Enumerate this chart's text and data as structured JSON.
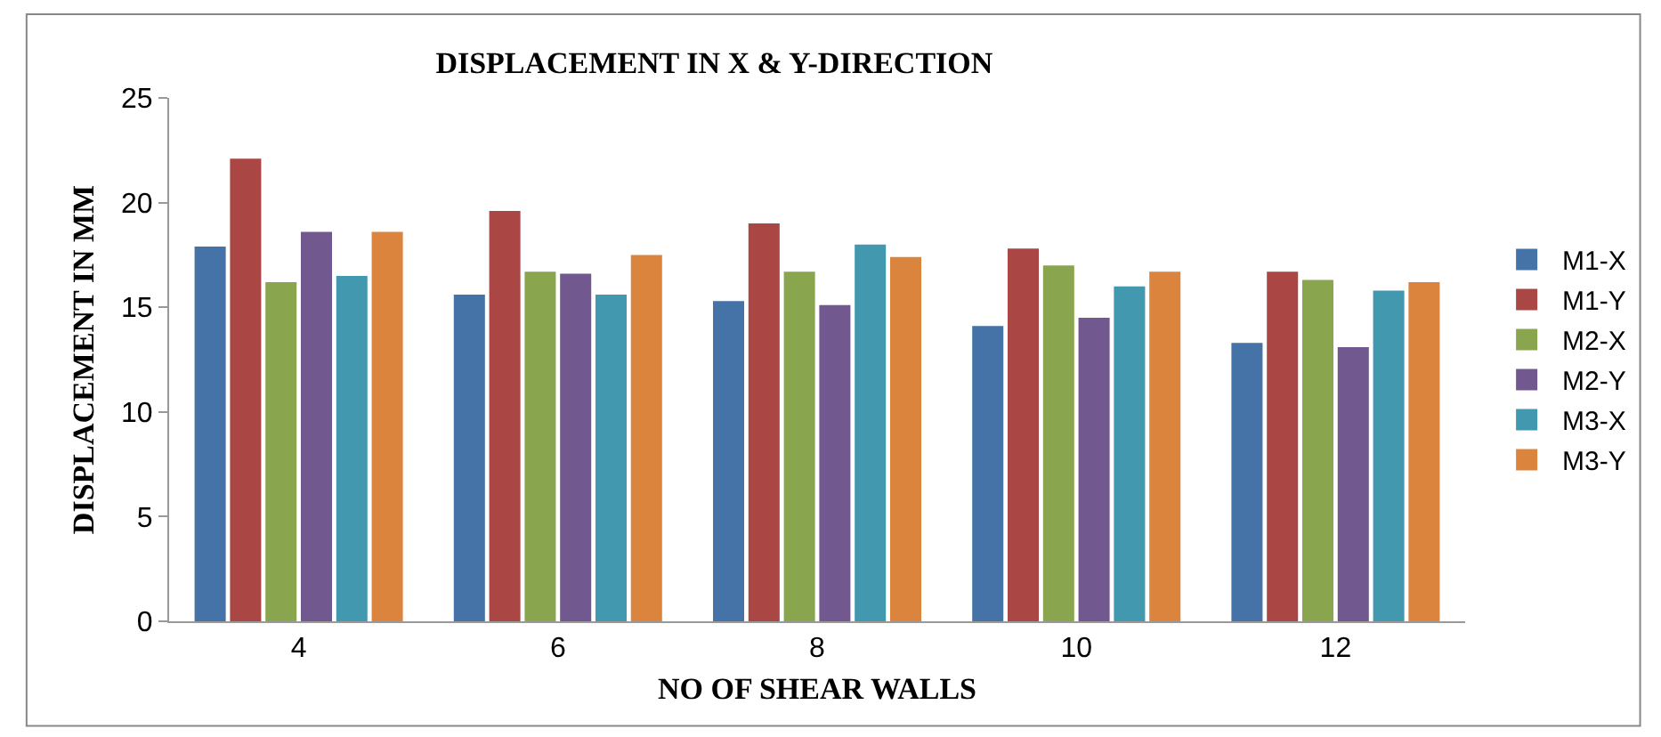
{
  "chart_data": {
    "type": "bar",
    "title": "DISPLACEMENT IN X & Y-DIRECTION",
    "xlabel": "NO OF SHEAR WALLS",
    "ylabel": "DISPLACEMENT IN MM",
    "categories": [
      "4",
      "6",
      "8",
      "10",
      "12"
    ],
    "series": [
      {
        "name": "M1-X",
        "color": "#4572a7",
        "values": [
          17.9,
          15.6,
          15.3,
          14.1,
          13.3
        ]
      },
      {
        "name": "M1-Y",
        "color": "#aa4643",
        "values": [
          22.1,
          19.6,
          19.0,
          17.8,
          16.7
        ]
      },
      {
        "name": "M2-X",
        "color": "#89a54e",
        "values": [
          16.2,
          16.7,
          16.7,
          17.0,
          16.3
        ]
      },
      {
        "name": "M2-Y",
        "color": "#71588f",
        "values": [
          18.6,
          16.6,
          15.1,
          14.5,
          13.1
        ]
      },
      {
        "name": "M3-X",
        "color": "#4198af",
        "values": [
          16.5,
          15.6,
          18.0,
          16.0,
          15.8
        ]
      },
      {
        "name": "M3-Y",
        "color": "#db843d",
        "values": [
          18.6,
          17.5,
          17.4,
          16.7,
          16.2
        ]
      }
    ],
    "ylim": [
      0,
      25
    ],
    "yticks": [
      0,
      5,
      10,
      15,
      20,
      25
    ],
    "grid": false,
    "legend": "right"
  }
}
